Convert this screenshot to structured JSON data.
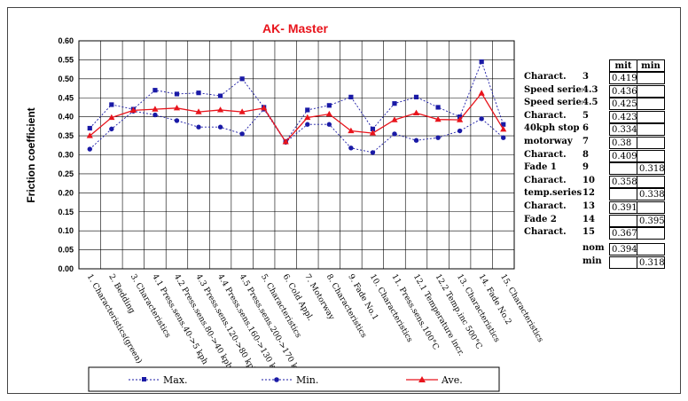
{
  "chart_data": {
    "type": "line",
    "title": "AK- Master",
    "ylabel": "Friction coefficient",
    "ylim": [
      0,
      0.6
    ],
    "yticks": [
      "0.00",
      "0.05",
      "0.10",
      "0.15",
      "0.20",
      "0.25",
      "0.30",
      "0.35",
      "0.40",
      "0.45",
      "0.50",
      "0.55",
      "0.60"
    ],
    "grid": true,
    "legend_position": "bottom",
    "categories": [
      "1. Characteristics(green)",
      "2. Bedding",
      "3. Characteristics",
      "4.1 Press.sens.40->5 kph",
      "4.2 Press.sens.80->40 kph",
      "4.3 Press.sens.120->80 kph",
      "4.4 Press.sens.160->130 kph",
      "4.5 Press.sens.200->170 kph",
      "5. Characteristics",
      "6. Cold Appl.",
      "7. Motorway",
      "8. Characteristics",
      "9. Fade No.1",
      "10. Characteristics",
      "11. Press.sens.100°C",
      "12.1 Temperature incr.",
      "12.2 Temp.inc 500°C",
      "13. Characteristics",
      "14. Fade No.2",
      "15. Characteristics"
    ],
    "series": [
      {
        "name": "Max.",
        "color": "#1a1aa6",
        "marker": "square",
        "dashed": true,
        "values": [
          0.37,
          0.432,
          0.42,
          0.47,
          0.46,
          0.463,
          0.455,
          0.5,
          0.425,
          0.335,
          0.418,
          0.43,
          0.452,
          0.368,
          0.435,
          0.452,
          0.425,
          0.4,
          0.545,
          0.38
        ]
      },
      {
        "name": "Min.",
        "color": "#1a1aa6",
        "marker": "circle",
        "dashed": true,
        "values": [
          0.315,
          0.368,
          0.415,
          0.405,
          0.39,
          0.373,
          0.373,
          0.355,
          0.42,
          0.333,
          0.38,
          0.38,
          0.318,
          0.306,
          0.355,
          0.338,
          0.345,
          0.363,
          0.395,
          0.345
        ]
      },
      {
        "name": "Ave.",
        "color": "#e8141c",
        "marker": "triangle",
        "dashed": false,
        "values": [
          0.35,
          0.398,
          0.417,
          0.42,
          0.423,
          0.413,
          0.418,
          0.413,
          0.423,
          0.334,
          0.398,
          0.407,
          0.363,
          0.357,
          0.392,
          0.41,
          0.393,
          0.392,
          0.462,
          0.367
        ]
      }
    ]
  },
  "table": {
    "headers": [
      "mit",
      "min"
    ],
    "rows": [
      {
        "label": "Charact.",
        "num": "3",
        "mit": "0.419",
        "min": ""
      },
      {
        "label": "Speed series",
        "num": "4.3",
        "mit": "0.436",
        "min": ""
      },
      {
        "label": "Speed series",
        "num": "4.5",
        "mit": "0.425",
        "min": ""
      },
      {
        "label": "Charact.",
        "num": "5",
        "mit": "0.423",
        "min": ""
      },
      {
        "label": "40kph stop",
        "num": "6",
        "mit": "0.334",
        "min": ""
      },
      {
        "label": "motorway",
        "num": "7",
        "mit": "0.38",
        "min": ""
      },
      {
        "label": "Charact.",
        "num": "8",
        "mit": "0.409",
        "min": ""
      },
      {
        "label": "Fade 1",
        "num": "9",
        "mit": "",
        "min": "0.318"
      },
      {
        "label": "Charact.",
        "num": "10",
        "mit": "0.358",
        "min": ""
      },
      {
        "label": "temp.series",
        "num": "12",
        "mit": "",
        "min": "0.338"
      },
      {
        "label": "Charact.",
        "num": "13",
        "mit": "0.391",
        "min": ""
      },
      {
        "label": "Fade 2",
        "num": "14",
        "mit": "",
        "min": "0.395"
      },
      {
        "label": "Charact.",
        "num": "15",
        "mit": "0.367",
        "min": ""
      }
    ],
    "summary": [
      {
        "label": "nom",
        "mit": "0.394",
        "min": ""
      },
      {
        "label": "min",
        "mit": "",
        "min": "0.318"
      }
    ]
  }
}
